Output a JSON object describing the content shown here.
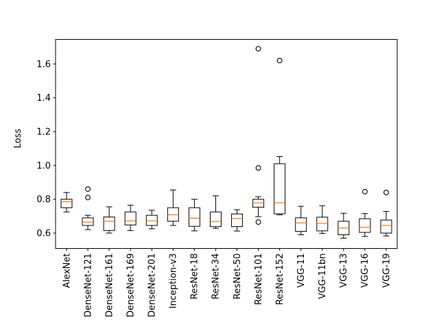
{
  "chart_data": {
    "type": "boxplot",
    "title": "",
    "xlabel": "",
    "ylabel": "Loss",
    "ylim": [
      0.509,
      1.745
    ],
    "yticks": [
      0.6,
      0.8,
      1.0,
      1.2,
      1.4,
      1.6
    ],
    "grid": false,
    "legend": "none",
    "colors": {
      "median": "#ff7f0e",
      "box_edge": "#000000",
      "background": "#ffffff"
    },
    "categories": [
      "AlexNet",
      "DenseNet-121",
      "DenseNet-161",
      "DenseNet-169",
      "DenseNet-201",
      "Inception-v3",
      "ResNet-18",
      "ResNet-34",
      "ResNet-50",
      "ResNet-101",
      "ResNet-152",
      "VGG-11",
      "VGG-11bn",
      "VGG-13",
      "VGG-16",
      "VGG-19"
    ],
    "series": [
      {
        "name": "AlexNet",
        "whisker_low": 0.725,
        "q1": 0.75,
        "median": 0.785,
        "q3": 0.8,
        "whisker_high": 0.84,
        "outliers": []
      },
      {
        "name": "DenseNet-121",
        "whisker_low": 0.62,
        "q1": 0.645,
        "median": 0.665,
        "q3": 0.69,
        "whisker_high": 0.705,
        "outliers": [
          0.86,
          0.81
        ]
      },
      {
        "name": "DenseNet-161",
        "whisker_low": 0.6,
        "q1": 0.615,
        "median": 0.67,
        "q3": 0.695,
        "whisker_high": 0.755,
        "outliers": []
      },
      {
        "name": "DenseNet-169",
        "whisker_low": 0.615,
        "q1": 0.648,
        "median": 0.672,
        "q3": 0.725,
        "whisker_high": 0.765,
        "outliers": []
      },
      {
        "name": "DenseNet-201",
        "whisker_low": 0.625,
        "q1": 0.645,
        "median": 0.672,
        "q3": 0.705,
        "whisker_high": 0.735,
        "outliers": []
      },
      {
        "name": "Inception-v3",
        "whisker_low": 0.645,
        "q1": 0.67,
        "median": 0.708,
        "q3": 0.75,
        "whisker_high": 0.855,
        "outliers": []
      },
      {
        "name": "ResNet-18",
        "whisker_low": 0.613,
        "q1": 0.64,
        "median": 0.688,
        "q3": 0.75,
        "whisker_high": 0.8,
        "outliers": []
      },
      {
        "name": "ResNet-34",
        "whisker_low": 0.628,
        "q1": 0.638,
        "median": 0.668,
        "q3": 0.725,
        "whisker_high": 0.82,
        "outliers": []
      },
      {
        "name": "ResNet-50",
        "whisker_low": 0.612,
        "q1": 0.638,
        "median": 0.686,
        "q3": 0.713,
        "whisker_high": 0.738,
        "outliers": []
      },
      {
        "name": "ResNet-101",
        "whisker_low": 0.697,
        "q1": 0.753,
        "median": 0.778,
        "q3": 0.8,
        "whisker_high": 0.815,
        "outliers": [
          1.69,
          0.985,
          0.665
        ]
      },
      {
        "name": "ResNet-152",
        "whisker_low": 0.708,
        "q1": 0.714,
        "median": 0.779,
        "q3": 1.01,
        "whisker_high": 1.052,
        "outliers": [
          1.62
        ]
      },
      {
        "name": "VGG-11",
        "whisker_low": 0.59,
        "q1": 0.61,
        "median": 0.66,
        "q3": 0.69,
        "whisker_high": 0.758,
        "outliers": []
      },
      {
        "name": "VGG-11bn",
        "whisker_low": 0.598,
        "q1": 0.613,
        "median": 0.658,
        "q3": 0.694,
        "whisker_high": 0.762,
        "outliers": []
      },
      {
        "name": "VGG-13",
        "whisker_low": 0.57,
        "q1": 0.59,
        "median": 0.63,
        "q3": 0.67,
        "whisker_high": 0.717,
        "outliers": []
      },
      {
        "name": "VGG-16",
        "whisker_low": 0.58,
        "q1": 0.604,
        "median": 0.634,
        "q3": 0.685,
        "whisker_high": 0.715,
        "outliers": [
          0.845
        ]
      },
      {
        "name": "VGG-19",
        "whisker_low": 0.583,
        "q1": 0.6,
        "median": 0.645,
        "q3": 0.677,
        "whisker_high": 0.728,
        "outliers": [
          0.84
        ]
      }
    ]
  }
}
